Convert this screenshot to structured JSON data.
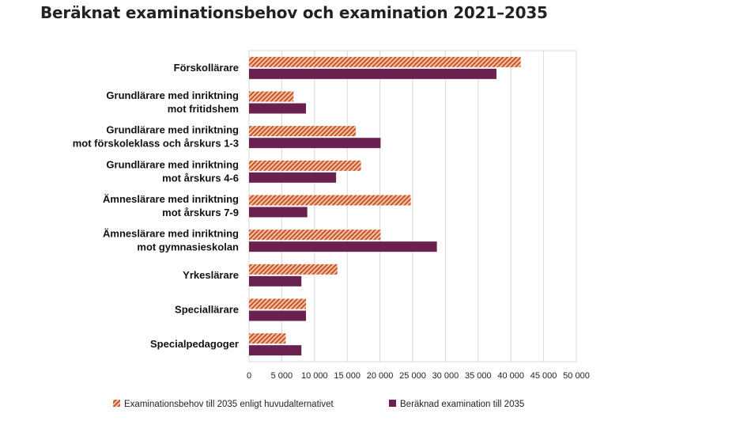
{
  "page": {
    "title": "Beräknat examinationsbehov och examination 2021–2035"
  },
  "chart_data": {
    "type": "bar",
    "orientation": "horizontal",
    "categories": [
      [
        "Förskollärare"
      ],
      [
        "Grundlärare med inriktning",
        "mot fritidshem"
      ],
      [
        "Grundlärare med inriktning",
        "mot förskoleklass och årskurs 1-3"
      ],
      [
        "Grundlärare med inriktning",
        "mot årskurs 4-6"
      ],
      [
        "Ämneslärare med inriktning",
        "mot årskurs 7-9"
      ],
      [
        "Ämneslärare med inriktning",
        "mot gymnasieskolan"
      ],
      [
        "Yrkeslärare"
      ],
      [
        "Speciallärare"
      ],
      [
        "Specialpedagoger"
      ]
    ],
    "series": [
      {
        "name": "Examinationsbehov till 2035 enligt huvudalternativet",
        "color": "#e07a4f",
        "pattern": "diagonal-hatch",
        "values": [
          41500,
          6800,
          16300,
          17100,
          24700,
          20100,
          13500,
          8700,
          5600
        ]
      },
      {
        "name": "Beräknad examination till 2035",
        "color": "#6b2150",
        "pattern": "solid",
        "values": [
          37800,
          8700,
          20100,
          13300,
          8900,
          28700,
          8000,
          8700,
          8000
        ]
      }
    ],
    "xlim": [
      0,
      50000
    ],
    "xticks": [
      0,
      5000,
      10000,
      15000,
      20000,
      25000,
      30000,
      35000,
      40000,
      45000,
      50000
    ],
    "xtick_labels": [
      "0",
      "5 000",
      "10 000",
      "15 000",
      "20 000",
      "25 000",
      "30 000",
      "35 000",
      "40 000",
      "45 000",
      "50 000"
    ],
    "grid": true,
    "legend_position": "bottom",
    "xlabel": "",
    "ylabel": ""
  }
}
